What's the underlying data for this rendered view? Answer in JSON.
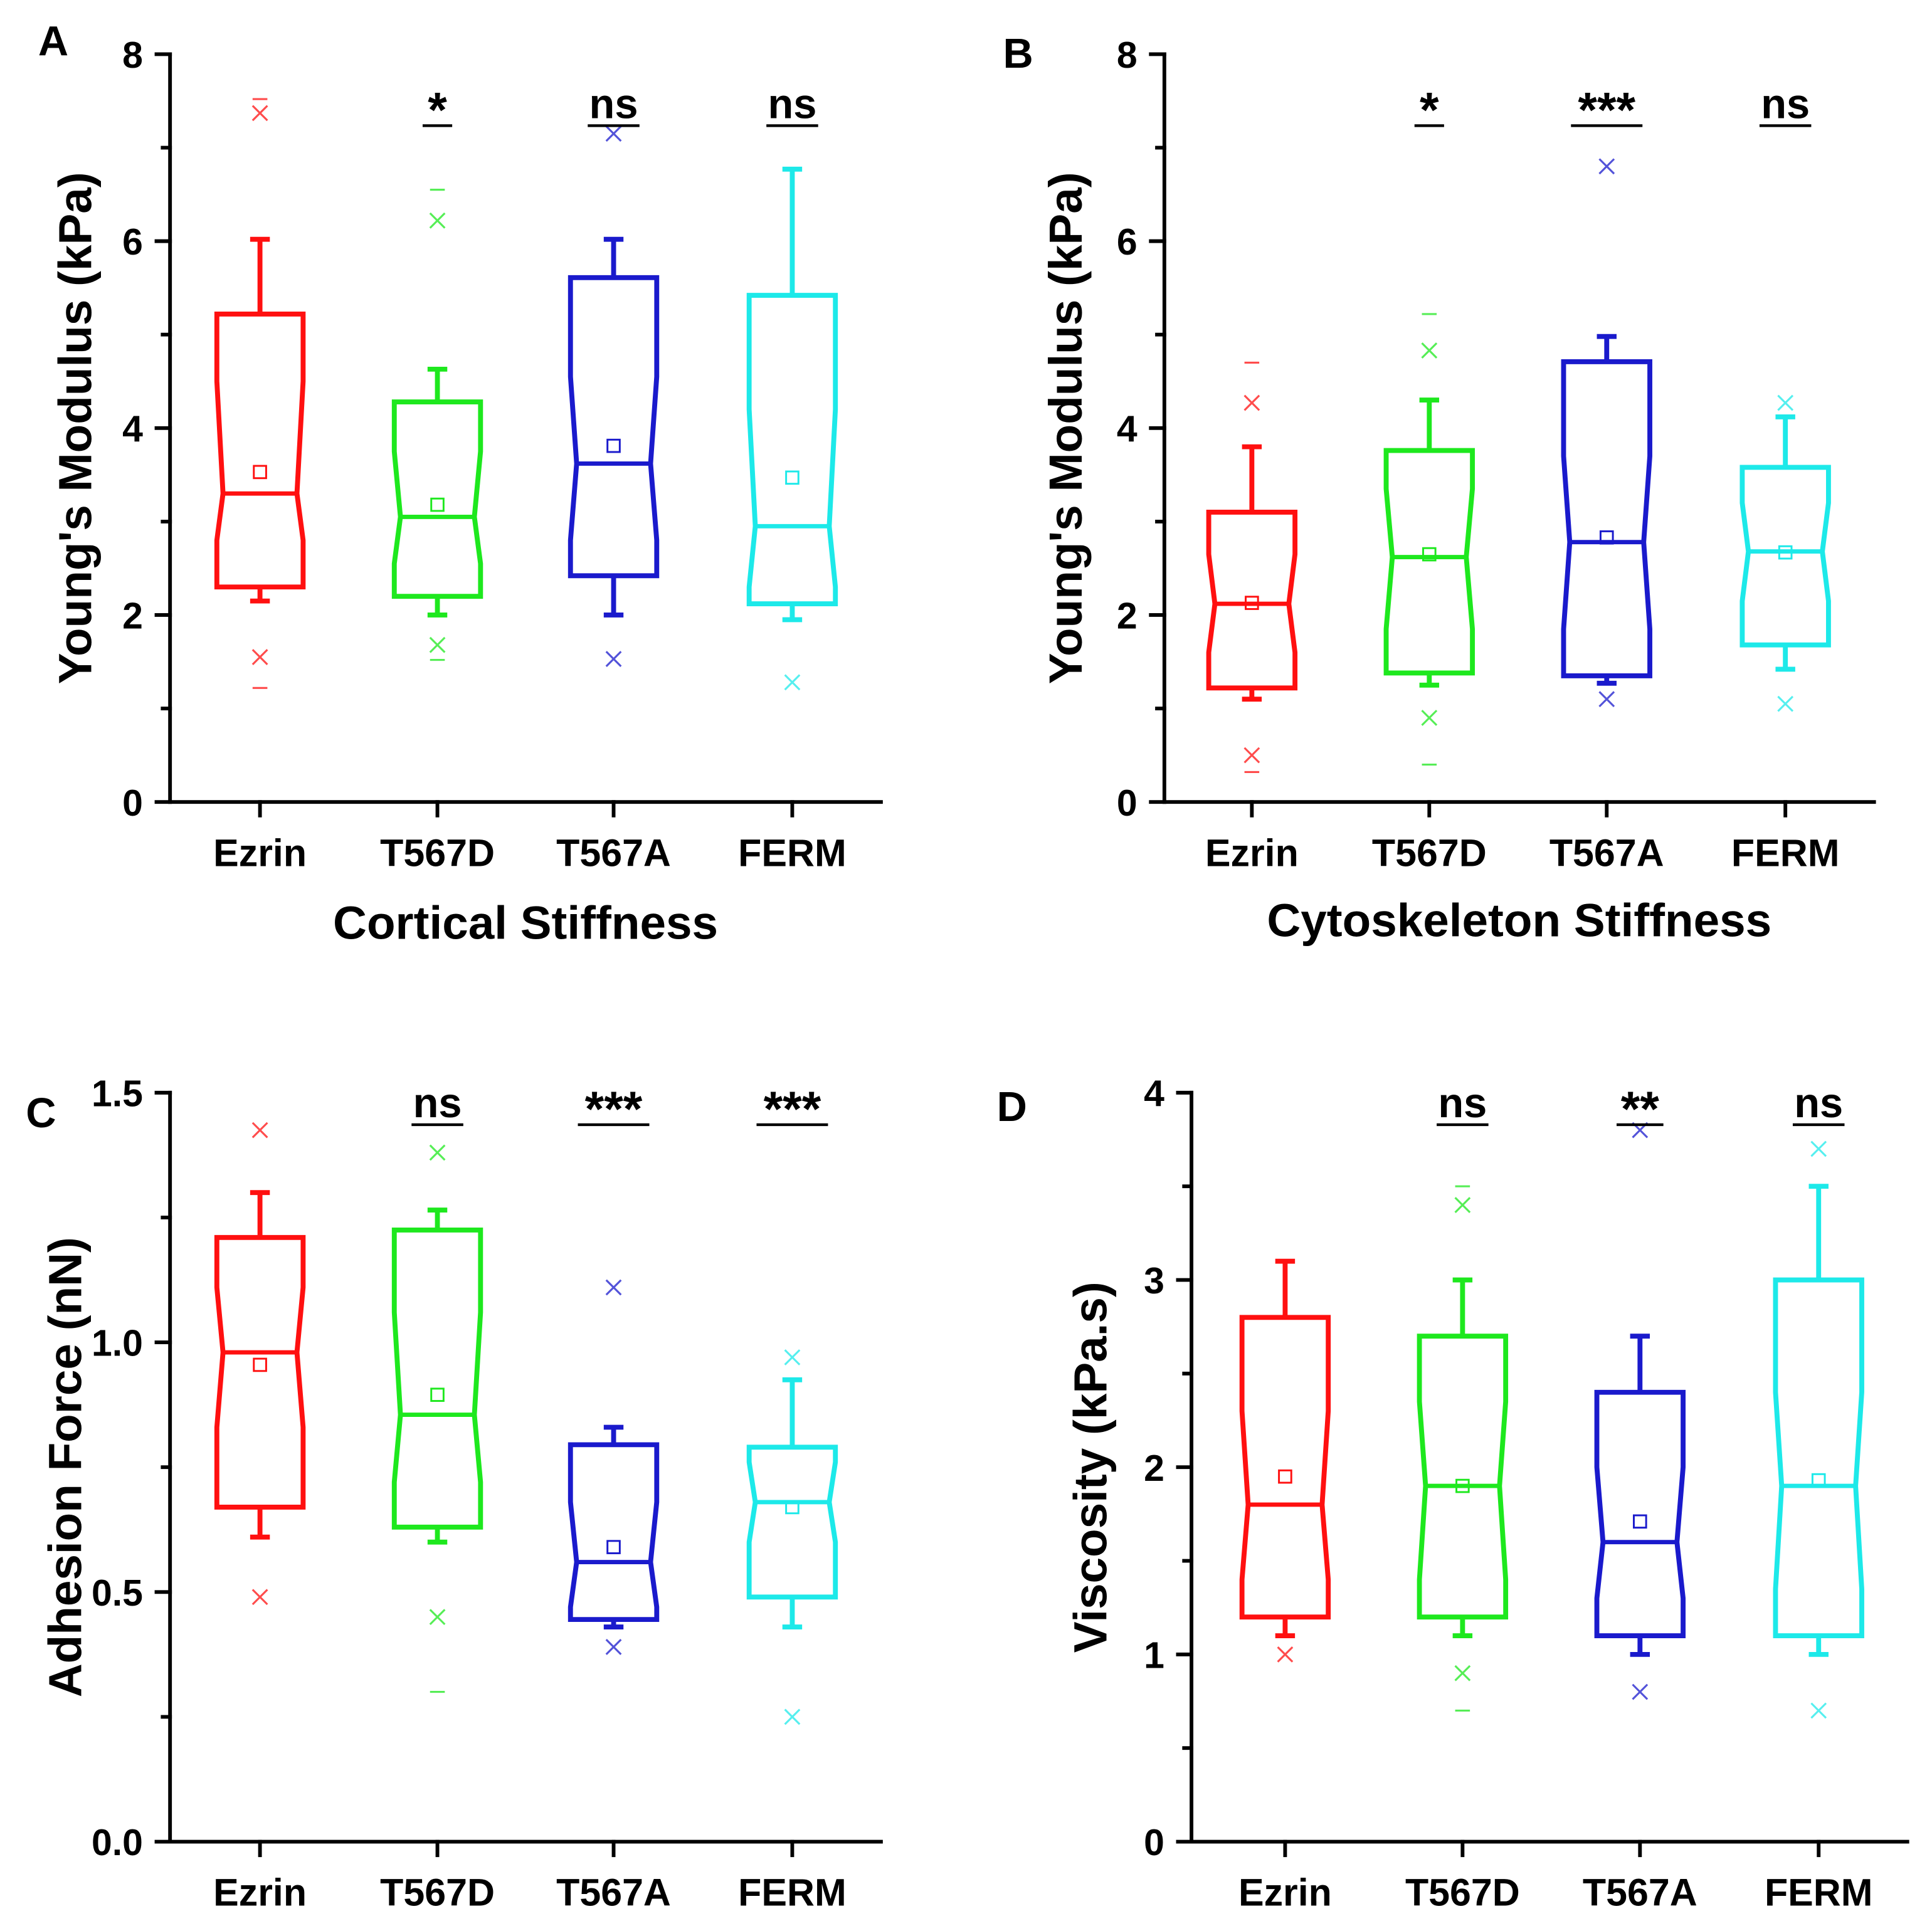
{
  "chart_data": [
    {
      "panel": "A",
      "type": "box",
      "xlabel": "Cortical Stiffness",
      "ylabel": "Young's Modulus (kPa)",
      "ylim": [
        0,
        8
      ],
      "yticks": [
        0,
        2,
        4,
        6,
        8
      ],
      "ytick_labels": [
        "0",
        "2",
        "4",
        "6",
        "8"
      ],
      "series": [
        {
          "name": "Ezrin",
          "color": "#ff1010",
          "q1": 2.3,
          "median": 3.3,
          "q3": 5.22,
          "mean": 3.53,
          "whisker_low": 2.15,
          "whisker_high": 6.02,
          "notch": [
            2.8,
            4.5
          ],
          "p1": 1.55,
          "p99": 7.37,
          "min": 1.22,
          "max": 7.52
        },
        {
          "name": "T567D",
          "color": "#1ee81e",
          "q1": 2.2,
          "median": 3.05,
          "q3": 4.28,
          "mean": 3.18,
          "whisker_low": 2.0,
          "whisker_high": 4.63,
          "notch": [
            2.55,
            3.75
          ],
          "p1": 1.68,
          "p99": 6.22,
          "min": 1.52,
          "max": 6.55,
          "significance": "*"
        },
        {
          "name": "T567A",
          "color": "#1a1acc",
          "q1": 2.42,
          "median": 3.62,
          "q3": 5.61,
          "mean": 3.81,
          "whisker_low": 2.0,
          "whisker_high": 6.02,
          "notch": [
            2.8,
            4.55
          ],
          "p1": 1.53,
          "p99": 7.15,
          "min": null,
          "max": null,
          "significance": "ns"
        },
        {
          "name": "FERM",
          "color": "#1de9e9",
          "q1": 2.12,
          "median": 2.95,
          "q3": 5.42,
          "mean": 3.47,
          "whisker_low": 1.95,
          "whisker_high": 6.77,
          "notch": [
            2.3,
            4.2
          ],
          "p1": 1.28,
          "p99": null,
          "min": null,
          "max": null,
          "significance": "ns"
        }
      ]
    },
    {
      "panel": "B",
      "type": "box",
      "xlabel": "Cytoskeleton Stiffness",
      "ylabel": "Young's Modulus (kPa)",
      "ylim": [
        0,
        8
      ],
      "yticks": [
        0,
        2,
        4,
        6,
        8
      ],
      "ytick_labels": [
        "0",
        "2",
        "4",
        "6",
        "8"
      ],
      "series": [
        {
          "name": "Ezrin",
          "color": "#ff1010",
          "q1": 1.22,
          "median": 2.12,
          "q3": 3.1,
          "mean": 2.13,
          "whisker_low": 1.1,
          "whisker_high": 3.8,
          "notch": [
            1.6,
            2.65
          ],
          "p1": 0.5,
          "p99": 4.27,
          "min": 0.32,
          "max": 4.7
        },
        {
          "name": "T567D",
          "color": "#1ee81e",
          "q1": 1.38,
          "median": 2.62,
          "q3": 3.76,
          "mean": 2.65,
          "whisker_low": 1.25,
          "whisker_high": 4.3,
          "notch": [
            1.85,
            3.35
          ],
          "p1": 0.9,
          "p99": 4.83,
          "min": 0.4,
          "max": 5.22,
          "significance": "*"
        },
        {
          "name": "T567A",
          "color": "#1a1acc",
          "q1": 1.35,
          "median": 2.78,
          "q3": 4.71,
          "mean": 2.83,
          "whisker_low": 1.27,
          "whisker_high": 4.98,
          "notch": [
            1.85,
            3.7
          ],
          "p1": 1.1,
          "p99": 6.8,
          "min": null,
          "max": null,
          "significance": "***"
        },
        {
          "name": "FERM",
          "color": "#1de9e9",
          "q1": 1.68,
          "median": 2.68,
          "q3": 3.58,
          "mean": 2.67,
          "whisker_low": 1.42,
          "whisker_high": 4.12,
          "notch": [
            2.15,
            3.2
          ],
          "p1": 1.05,
          "p99": 4.27,
          "min": null,
          "max": null,
          "significance": "ns"
        }
      ]
    },
    {
      "panel": "C",
      "type": "box",
      "ylabel": "Adhesion Force (nN)",
      "ylim": [
        0,
        1.5
      ],
      "yticks": [
        0,
        0.5,
        1.0,
        1.5
      ],
      "ytick_labels": [
        "0.0",
        "0.5",
        "1.0",
        "1.5"
      ],
      "series": [
        {
          "name": "Ezrin",
          "color": "#ff1010",
          "q1": 0.67,
          "median": 0.98,
          "q3": 1.21,
          "mean": 0.955,
          "whisker_low": 0.61,
          "whisker_high": 1.3,
          "notch": [
            0.83,
            1.11
          ],
          "p1": 0.49,
          "p99": 1.425,
          "min": null,
          "max": null
        },
        {
          "name": "T567D",
          "color": "#1ee81e",
          "q1": 0.63,
          "median": 0.855,
          "q3": 1.225,
          "mean": 0.895,
          "whisker_low": 0.6,
          "whisker_high": 1.265,
          "notch": [
            0.72,
            1.06
          ],
          "p1": 0.45,
          "p99": 1.38,
          "min": 0.3,
          "max": null,
          "significance": "ns"
        },
        {
          "name": "T567A",
          "color": "#1a1acc",
          "q1": 0.445,
          "median": 0.56,
          "q3": 0.795,
          "mean": 0.59,
          "whisker_low": 0.43,
          "whisker_high": 0.83,
          "notch": [
            0.47,
            0.68
          ],
          "p1": 0.39,
          "p99": 1.11,
          "min": null,
          "max": null,
          "significance": "***"
        },
        {
          "name": "FERM",
          "color": "#1de9e9",
          "q1": 0.49,
          "median": 0.68,
          "q3": 0.79,
          "mean": 0.67,
          "whisker_low": 0.43,
          "whisker_high": 0.925,
          "notch": [
            0.6,
            0.76
          ],
          "p1": 0.25,
          "p99": 0.97,
          "min": null,
          "max": null,
          "significance": "***"
        }
      ]
    },
    {
      "panel": "D",
      "type": "box",
      "ylabel": "Viscosity (kPa.s)",
      "ylim": [
        0,
        4
      ],
      "yticks": [
        0,
        1,
        2,
        3,
        4
      ],
      "ytick_labels": [
        "0",
        "1",
        "2",
        "3",
        "4"
      ],
      "series": [
        {
          "name": "Ezrin",
          "color": "#ff1010",
          "q1": 1.2,
          "median": 1.8,
          "q3": 2.8,
          "mean": 1.95,
          "whisker_low": 1.1,
          "whisker_high": 3.1,
          "notch": [
            1.4,
            2.3
          ],
          "p1": 1.0,
          "p99": null,
          "min": null,
          "max": null
        },
        {
          "name": "T567D",
          "color": "#1ee81e",
          "q1": 1.2,
          "median": 1.9,
          "q3": 2.7,
          "mean": 1.9,
          "whisker_low": 1.1,
          "whisker_high": 3.0,
          "notch": [
            1.4,
            2.35
          ],
          "p1": 0.9,
          "p99": 3.4,
          "min": 0.7,
          "max": 3.5,
          "significance": "ns"
        },
        {
          "name": "T567A",
          "color": "#1a1acc",
          "q1": 1.1,
          "median": 1.6,
          "q3": 2.4,
          "mean": 1.71,
          "whisker_low": 1.0,
          "whisker_high": 2.7,
          "notch": [
            1.3,
            2.0
          ],
          "p1": 0.8,
          "p99": 3.8,
          "min": null,
          "max": null,
          "significance": "**"
        },
        {
          "name": "FERM",
          "color": "#1de9e9",
          "q1": 1.1,
          "median": 1.9,
          "q3": 3.0,
          "mean": 1.93,
          "whisker_low": 1.0,
          "whisker_high": 3.5,
          "notch": [
            1.35,
            2.4
          ],
          "p1": 0.7,
          "p99": 3.7,
          "min": null,
          "max": null,
          "significance": "ns"
        }
      ]
    }
  ]
}
